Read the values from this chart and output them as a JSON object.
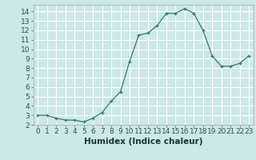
{
  "x": [
    0,
    1,
    2,
    3,
    4,
    5,
    6,
    7,
    8,
    9,
    10,
    11,
    12,
    13,
    14,
    15,
    16,
    17,
    18,
    19,
    20,
    21,
    22,
    23
  ],
  "y": [
    3.0,
    3.0,
    2.7,
    2.5,
    2.5,
    2.3,
    2.7,
    3.3,
    4.5,
    5.5,
    8.7,
    11.5,
    11.7,
    12.5,
    13.8,
    13.8,
    14.3,
    13.8,
    12.0,
    9.3,
    8.2,
    8.2,
    8.5,
    9.3
  ],
  "line_color": "#2e7d6e",
  "marker": "+",
  "marker_color": "#2e7d6e",
  "xlabel": "Humidex (Indice chaleur)",
  "xlim": [
    -0.5,
    23.5
  ],
  "ylim": [
    2.0,
    14.7
  ],
  "yticks": [
    2,
    3,
    4,
    5,
    6,
    7,
    8,
    9,
    10,
    11,
    12,
    13,
    14
  ],
  "xticks": [
    0,
    1,
    2,
    3,
    4,
    5,
    6,
    7,
    8,
    9,
    10,
    11,
    12,
    13,
    14,
    15,
    16,
    17,
    18,
    19,
    20,
    21,
    22,
    23
  ],
  "background_color": "#cce8e8",
  "grid_color": "#ffffff",
  "tick_fontsize": 6.5,
  "xlabel_fontsize": 7.5
}
